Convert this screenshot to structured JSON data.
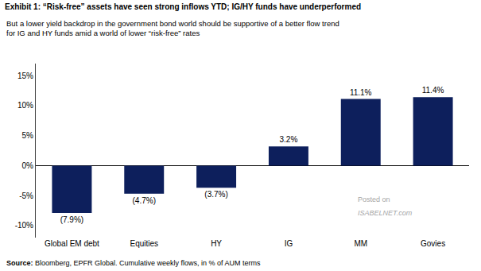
{
  "chart_data": {
    "type": "bar",
    "title": "Exhibit 1: “Risk-free” assets have seen strong inflows YTD; IG/HY funds have underperformed",
    "subtitle": "But a lower yield backdrop in the government bond world should be supportive of a better flow trend\nfor IG and HY funds amid a world of lower “risk-free” rates",
    "source": "Source: Bloomberg, EPFR Global. Cumulative weekly flows, in % of AUM terms",
    "annotations": [
      "Posted on",
      "ISABELNET.com"
    ],
    "categories": [
      "Global EM debt",
      "Equities",
      "HY",
      "IG",
      "MM",
      "Govies"
    ],
    "values": [
      -7.9,
      -4.7,
      -3.7,
      3.2,
      11.1,
      11.4
    ],
    "value_labels": [
      "(7.9%)",
      "(4.7%)",
      "(3.7%)",
      "3.2%",
      "11.1%",
      "11.4%"
    ],
    "data_labels": true,
    "color": "#0d1f5c",
    "ylim": [
      -12,
      17
    ],
    "yticks": [
      {
        "value": -10,
        "label": "-10%"
      },
      {
        "value": -5,
        "label": "-5%"
      },
      {
        "value": 0,
        "label": "0%"
      },
      {
        "value": 5,
        "label": "5%"
      },
      {
        "value": 10,
        "label": "10%"
      },
      {
        "value": 15,
        "label": "15%"
      }
    ],
    "grid": false
  }
}
